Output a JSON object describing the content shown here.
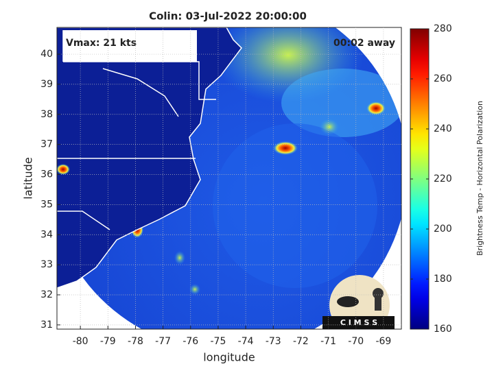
{
  "chart_data": {
    "type": "map",
    "title": "Colin: 03-Jul-2022 20:00:00",
    "annotations": [
      "Vmax: 21 kts",
      "00:02 away"
    ],
    "x_label": "longitude",
    "y_label": "latitude",
    "xlim": [
      -80.85,
      -68.35
    ],
    "xticks": [
      -80,
      -79,
      -78,
      -77,
      -76,
      -75,
      -74,
      -73,
      -72,
      -71,
      -70,
      -69
    ],
    "ylim": [
      30.86,
      40.89
    ],
    "yticks": [
      31,
      32,
      33,
      34,
      35,
      36,
      37,
      38,
      39,
      40
    ],
    "grid": true,
    "colorbar": {
      "label": "Brightness Temp - Horizontal Polarization",
      "colormap": "jet",
      "lim": [
        160,
        280
      ],
      "ticks": [
        160,
        180,
        200,
        220,
        240,
        260,
        280
      ]
    },
    "logo_text": "C I M S S"
  }
}
